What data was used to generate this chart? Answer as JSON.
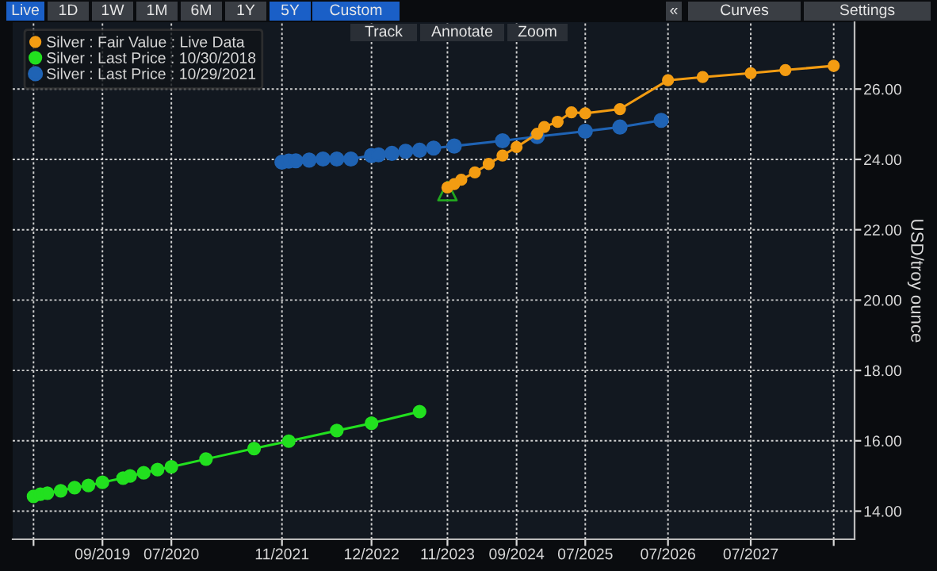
{
  "chart_data": {
    "type": "line",
    "ylabel": "USD/troy ounce",
    "annotations": [
      "Live",
      "1D",
      "1W",
      "1M",
      "6M",
      "1Y",
      "5Y",
      "Custom",
      "«",
      "Curves",
      "Settings",
      "Track",
      "Annotate",
      "Zoom"
    ],
    "xlim": [
      "2018-08",
      "2028-10"
    ],
    "xticks": [
      {
        "value": "2018-11",
        "label": null
      },
      {
        "value": "2019-09",
        "label": "09/2019"
      },
      {
        "value": "2020-07",
        "label": "07/2020"
      },
      {
        "value": "2021-11",
        "label": "11/2021"
      },
      {
        "value": "2022-12",
        "label": "12/2022"
      },
      {
        "value": "2023-11",
        "label": "11/2023"
      },
      {
        "value": "2024-09",
        "label": "09/2024"
      },
      {
        "value": "2025-07",
        "label": "07/2025"
      },
      {
        "value": "2026-07",
        "label": "07/2026"
      },
      {
        "value": "2027-07",
        "label": "07/2027"
      },
      {
        "value": "2028-07",
        "label": null
      }
    ],
    "ylim": [
      13.2,
      27.9
    ],
    "yticks": [
      {
        "value": 14,
        "label": "14.00"
      },
      {
        "value": 16,
        "label": "16.00"
      },
      {
        "value": 18,
        "label": "18.00"
      },
      {
        "value": 20,
        "label": "20.00"
      },
      {
        "value": 22,
        "label": "22.00"
      },
      {
        "value": 24,
        "label": "24.00"
      },
      {
        "value": 26,
        "label": "26.00"
      }
    ],
    "grid": true,
    "legend": "top left",
    "marker": "circle",
    "line_style": "solid",
    "series": [
      {
        "name": "Silver : Fair Value : Live Data",
        "color": "#f39c12",
        "x": [
          "2023-11",
          "2023-12",
          "2024-01",
          "2024-03",
          "2024-05",
          "2024-07",
          "2024-09",
          "2024-12",
          "2025-01",
          "2025-03",
          "2025-05",
          "2025-07",
          "2025-12",
          "2026-07",
          "2026-12",
          "2027-07",
          "2027-12",
          "2028-07"
        ],
        "values": [
          23.2,
          23.3,
          23.42,
          23.63,
          23.87,
          24.11,
          24.35,
          24.73,
          24.92,
          25.07,
          25.34,
          25.31,
          25.43,
          26.25,
          26.34,
          26.45,
          26.54,
          26.66
        ]
      },
      {
        "name": "Silver : Last Price : 10/30/2018",
        "color": "#22e01f",
        "x": [
          "2018-11",
          "2018-12",
          "2019-01",
          "2019-03",
          "2019-05",
          "2019-07",
          "2019-09",
          "2019-12",
          "2020-01",
          "2020-03",
          "2020-05",
          "2020-07",
          "2020-12",
          "2021-07",
          "2021-12",
          "2022-07",
          "2022-12",
          "2023-07"
        ],
        "values": [
          14.42,
          14.48,
          14.51,
          14.58,
          14.67,
          14.73,
          14.82,
          14.94,
          15.0,
          15.09,
          15.18,
          15.26,
          15.48,
          15.78,
          15.99,
          16.29,
          16.5,
          16.83
        ]
      },
      {
        "name": "Silver : Last Price : 10/29/2021",
        "color": "#1f63b4",
        "x": [
          "2021-11",
          "2021-12",
          "2022-01",
          "2022-03",
          "2022-05",
          "2022-07",
          "2022-09",
          "2022-12",
          "2023-01",
          "2023-03",
          "2023-05",
          "2023-07",
          "2023-09",
          "2023-12",
          "2024-07",
          "2024-12",
          "2025-07",
          "2025-12",
          "2026-06"
        ],
        "values": [
          23.92,
          23.95,
          23.96,
          23.98,
          24.01,
          24.01,
          24.01,
          24.11,
          24.13,
          24.17,
          24.23,
          24.26,
          24.32,
          24.38,
          24.53,
          24.65,
          24.8,
          24.92,
          25.11
        ]
      },
      {
        "type": "scatter",
        "marker": "triangle",
        "color": "#22a61f",
        "x": [
          "2023-11"
        ],
        "values": [
          23.1
        ]
      }
    ]
  }
}
